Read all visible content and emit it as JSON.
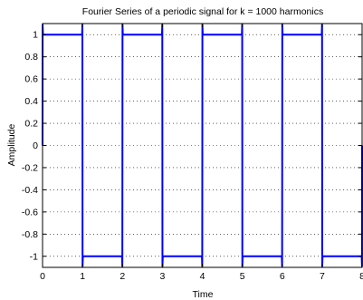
{
  "chart_data": {
    "type": "line",
    "title": "Fourier Series of a periodic signal for k = 1000 harmonics",
    "xlabel": "Time",
    "ylabel": "Amplitude",
    "xlim": [
      0,
      8
    ],
    "ylim": [
      -1.1,
      1.1
    ],
    "xticks": [
      0,
      1,
      2,
      3,
      4,
      5,
      6,
      7,
      8
    ],
    "xtick_labels": [
      "0",
      "1",
      "2",
      "3",
      "4",
      "5",
      "6",
      "7",
      "8"
    ],
    "yticks": [
      1,
      0.8,
      0.6,
      0.4,
      0.2,
      0,
      -0.2,
      -0.4,
      -0.6,
      -0.8,
      -1
    ],
    "ytick_labels": [
      "1",
      "0.8",
      "0.6",
      "0.4",
      "0.2",
      "0",
      "-0.2",
      "-0.4",
      "-0.6",
      "-0.8",
      "-1"
    ],
    "grid": true,
    "line_color": "#0000ff",
    "series": [
      {
        "x": [
          0,
          0.002,
          0.01,
          0.99,
          0.998,
          1,
          1.002,
          1.01,
          1.99,
          1.998,
          2,
          2.002,
          2.01,
          2.99,
          2.998,
          3,
          3.002,
          3.01,
          3.99,
          3.998,
          4,
          4.002,
          4.01,
          4.99,
          4.998,
          5,
          5.002,
          5.01,
          5.99,
          5.998,
          6,
          6.002,
          6.01,
          6.99,
          6.998,
          7,
          7.002,
          7.01,
          7.99,
          7.998,
          8
        ],
        "y": [
          0,
          1.09,
          1,
          1,
          1.09,
          0,
          -1.09,
          -1,
          -1,
          -1.09,
          0,
          1.09,
          1,
          1,
          1.09,
          0,
          -1.09,
          -1,
          -1,
          -1.09,
          0,
          1.09,
          1,
          1,
          1.09,
          0,
          -1.09,
          -1,
          -1,
          -1.09,
          0,
          1.09,
          1,
          1,
          1.09,
          0,
          -1.09,
          -1,
          -1,
          -1.09,
          0
        ]
      }
    ]
  }
}
